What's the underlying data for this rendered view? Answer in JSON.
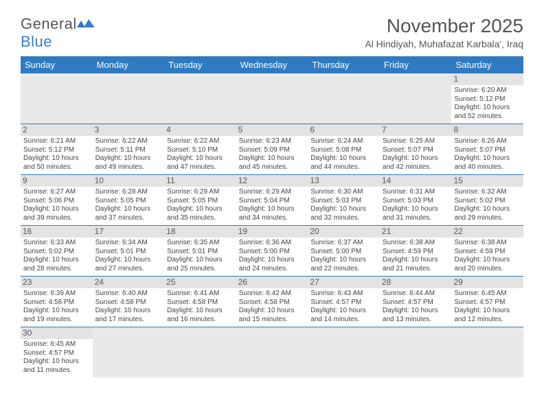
{
  "brand": {
    "name1": "General",
    "name2": "Blue"
  },
  "title": "November 2025",
  "location": "Al Hindiyah, Muhafazat Karbala', Iraq",
  "colors": {
    "header_bg": "#2f7ac0",
    "header_text": "#ffffff",
    "daynum_bg": "#e3e3e3",
    "blank_bg": "#e9e9e9",
    "border": "#2f7ac0",
    "text": "#444444",
    "title_text": "#555555",
    "logo_blue": "#3a7ebf"
  },
  "fonts": {
    "title_size": 28,
    "location_size": 14,
    "dayhead_size": 13,
    "daynum_size": 12,
    "body_size": 10
  },
  "day_names": [
    "Sunday",
    "Monday",
    "Tuesday",
    "Wednesday",
    "Thursday",
    "Friday",
    "Saturday"
  ],
  "weeks": [
    [
      null,
      null,
      null,
      null,
      null,
      null,
      {
        "n": "1",
        "sr": "Sunrise: 6:20 AM",
        "ss": "Sunset: 5:12 PM",
        "dl": "Daylight: 10 hours and 52 minutes."
      }
    ],
    [
      {
        "n": "2",
        "sr": "Sunrise: 6:21 AM",
        "ss": "Sunset: 5:12 PM",
        "dl": "Daylight: 10 hours and 50 minutes."
      },
      {
        "n": "3",
        "sr": "Sunrise: 6:22 AM",
        "ss": "Sunset: 5:11 PM",
        "dl": "Daylight: 10 hours and 49 minutes."
      },
      {
        "n": "4",
        "sr": "Sunrise: 6:22 AM",
        "ss": "Sunset: 5:10 PM",
        "dl": "Daylight: 10 hours and 47 minutes."
      },
      {
        "n": "5",
        "sr": "Sunrise: 6:23 AM",
        "ss": "Sunset: 5:09 PM",
        "dl": "Daylight: 10 hours and 45 minutes."
      },
      {
        "n": "6",
        "sr": "Sunrise: 6:24 AM",
        "ss": "Sunset: 5:08 PM",
        "dl": "Daylight: 10 hours and 44 minutes."
      },
      {
        "n": "7",
        "sr": "Sunrise: 6:25 AM",
        "ss": "Sunset: 5:07 PM",
        "dl": "Daylight: 10 hours and 42 minutes."
      },
      {
        "n": "8",
        "sr": "Sunrise: 6:26 AM",
        "ss": "Sunset: 5:07 PM",
        "dl": "Daylight: 10 hours and 40 minutes."
      }
    ],
    [
      {
        "n": "9",
        "sr": "Sunrise: 6:27 AM",
        "ss": "Sunset: 5:06 PM",
        "dl": "Daylight: 10 hours and 39 minutes."
      },
      {
        "n": "10",
        "sr": "Sunrise: 6:28 AM",
        "ss": "Sunset: 5:05 PM",
        "dl": "Daylight: 10 hours and 37 minutes."
      },
      {
        "n": "11",
        "sr": "Sunrise: 6:29 AM",
        "ss": "Sunset: 5:05 PM",
        "dl": "Daylight: 10 hours and 35 minutes."
      },
      {
        "n": "12",
        "sr": "Sunrise: 6:29 AM",
        "ss": "Sunset: 5:04 PM",
        "dl": "Daylight: 10 hours and 34 minutes."
      },
      {
        "n": "13",
        "sr": "Sunrise: 6:30 AM",
        "ss": "Sunset: 5:03 PM",
        "dl": "Daylight: 10 hours and 32 minutes."
      },
      {
        "n": "14",
        "sr": "Sunrise: 6:31 AM",
        "ss": "Sunset: 5:03 PM",
        "dl": "Daylight: 10 hours and 31 minutes."
      },
      {
        "n": "15",
        "sr": "Sunrise: 6:32 AM",
        "ss": "Sunset: 5:02 PM",
        "dl": "Daylight: 10 hours and 29 minutes."
      }
    ],
    [
      {
        "n": "16",
        "sr": "Sunrise: 6:33 AM",
        "ss": "Sunset: 5:02 PM",
        "dl": "Daylight: 10 hours and 28 minutes."
      },
      {
        "n": "17",
        "sr": "Sunrise: 6:34 AM",
        "ss": "Sunset: 5:01 PM",
        "dl": "Daylight: 10 hours and 27 minutes."
      },
      {
        "n": "18",
        "sr": "Sunrise: 6:35 AM",
        "ss": "Sunset: 5:01 PM",
        "dl": "Daylight: 10 hours and 25 minutes."
      },
      {
        "n": "19",
        "sr": "Sunrise: 6:36 AM",
        "ss": "Sunset: 5:00 PM",
        "dl": "Daylight: 10 hours and 24 minutes."
      },
      {
        "n": "20",
        "sr": "Sunrise: 6:37 AM",
        "ss": "Sunset: 5:00 PM",
        "dl": "Daylight: 10 hours and 22 minutes."
      },
      {
        "n": "21",
        "sr": "Sunrise: 6:38 AM",
        "ss": "Sunset: 4:59 PM",
        "dl": "Daylight: 10 hours and 21 minutes."
      },
      {
        "n": "22",
        "sr": "Sunrise: 6:38 AM",
        "ss": "Sunset: 4:59 PM",
        "dl": "Daylight: 10 hours and 20 minutes."
      }
    ],
    [
      {
        "n": "23",
        "sr": "Sunrise: 6:39 AM",
        "ss": "Sunset: 4:58 PM",
        "dl": "Daylight: 10 hours and 19 minutes."
      },
      {
        "n": "24",
        "sr": "Sunrise: 6:40 AM",
        "ss": "Sunset: 4:58 PM",
        "dl": "Daylight: 10 hours and 17 minutes."
      },
      {
        "n": "25",
        "sr": "Sunrise: 6:41 AM",
        "ss": "Sunset: 4:58 PM",
        "dl": "Daylight: 10 hours and 16 minutes."
      },
      {
        "n": "26",
        "sr": "Sunrise: 6:42 AM",
        "ss": "Sunset: 4:58 PM",
        "dl": "Daylight: 10 hours and 15 minutes."
      },
      {
        "n": "27",
        "sr": "Sunrise: 6:43 AM",
        "ss": "Sunset: 4:57 PM",
        "dl": "Daylight: 10 hours and 14 minutes."
      },
      {
        "n": "28",
        "sr": "Sunrise: 6:44 AM",
        "ss": "Sunset: 4:57 PM",
        "dl": "Daylight: 10 hours and 13 minutes."
      },
      {
        "n": "29",
        "sr": "Sunrise: 6:45 AM",
        "ss": "Sunset: 4:57 PM",
        "dl": "Daylight: 10 hours and 12 minutes."
      }
    ],
    [
      {
        "n": "30",
        "sr": "Sunrise: 6:45 AM",
        "ss": "Sunset: 4:57 PM",
        "dl": "Daylight: 10 hours and 11 minutes."
      },
      null,
      null,
      null,
      null,
      null,
      null
    ]
  ]
}
